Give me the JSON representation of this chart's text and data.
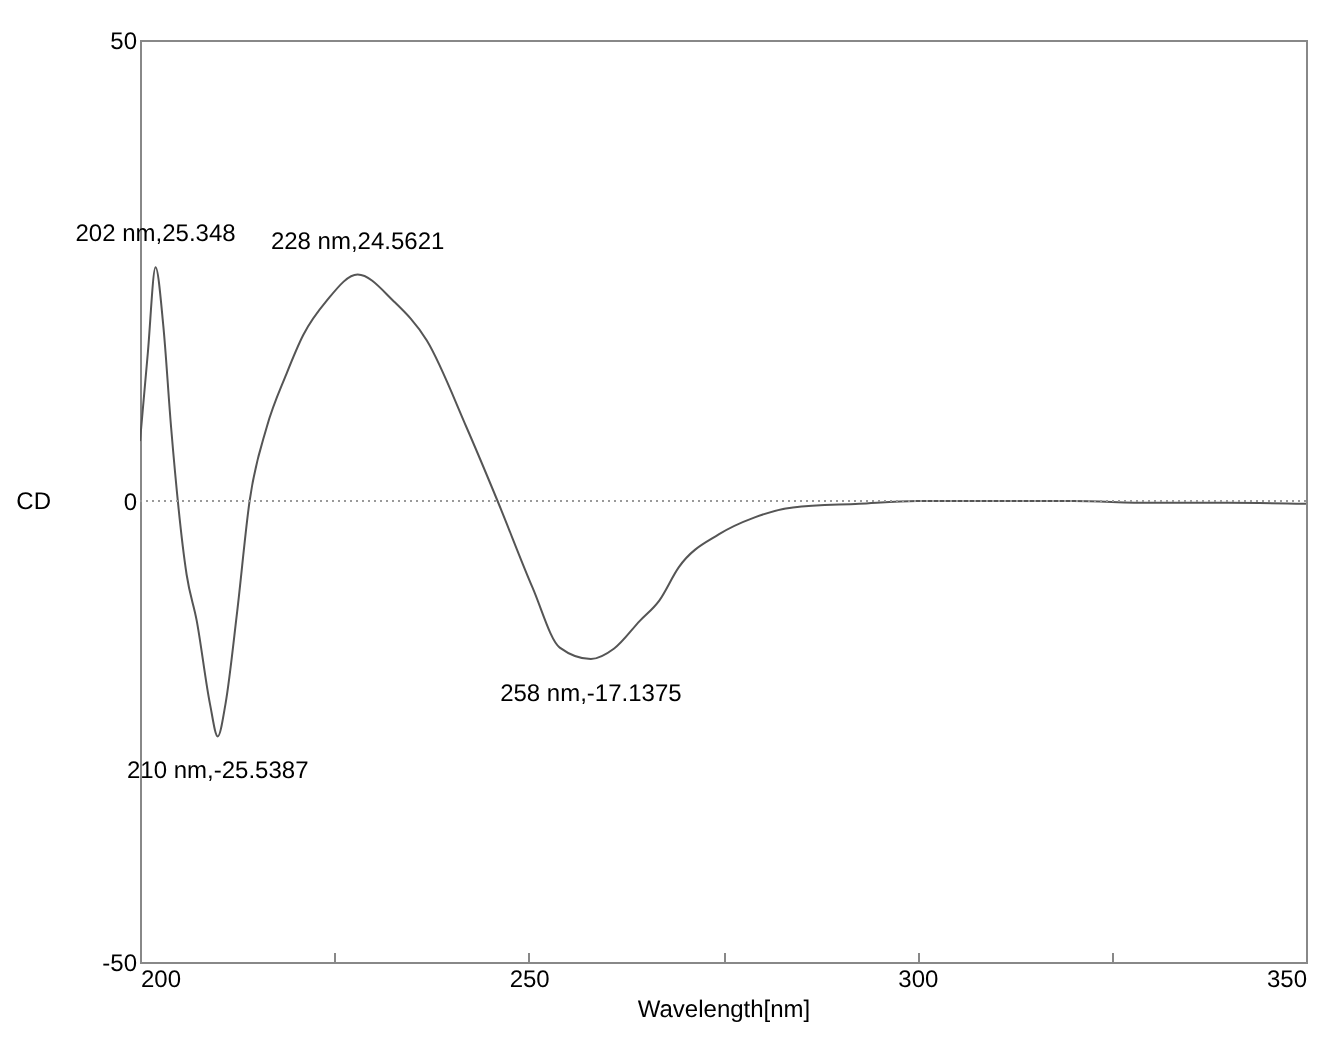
{
  "chart_data": {
    "type": "line",
    "xlabel": "Wavelength[nm]",
    "ylabel": "CD",
    "x": [
      200,
      201,
      202,
      203,
      204,
      206,
      207.3,
      209,
      210,
      211,
      212.5,
      214.1,
      216.3,
      218.8,
      221,
      224,
      228,
      232.6,
      236.9,
      242,
      246,
      250.5,
      254,
      258,
      261,
      264.3,
      266.8,
      269.3,
      274.5,
      279,
      284,
      292.5,
      300,
      310,
      320,
      330,
      340,
      350
    ],
    "series": [
      {
        "color": "#555555",
        "values": [
          6.5,
          16,
          25.348,
          19,
          8,
          -8,
          -13,
          -22,
          -25.5387,
          -22,
          -12,
          0,
          8,
          13.7,
          18,
          21.7,
          24.5621,
          21.7,
          17.4,
          8,
          0,
          -9.4,
          -15.9,
          -17.1375,
          -16,
          -13,
          -10.8,
          -7.2,
          -3.6,
          -1.8,
          -0.7,
          -0.3,
          0,
          0,
          0,
          -0.2,
          -0.2,
          -0.3
        ]
      }
    ],
    "xlim": [
      200,
      350
    ],
    "ylim": [
      -50,
      50
    ],
    "xticks": [
      200,
      {
        "value": 225,
        "label": null
      },
      250,
      {
        "value": 275,
        "label": null
      },
      300,
      {
        "value": 325,
        "label": null
      },
      350
    ],
    "yticks": [
      -50,
      0,
      50
    ],
    "ref_lines": [
      {
        "axis": "y",
        "value": 0,
        "color": "#999999",
        "line_style": "dotted"
      }
    ],
    "annotations": [
      {
        "text": "202 nm,25.348",
        "x": 202,
        "y": 25.348
      },
      {
        "text": "228 nm,24.5621",
        "x": 228,
        "y": 24.5621
      },
      {
        "text": "210 nm,-25.5387",
        "x": 210,
        "y": -25.5387
      },
      {
        "text": "258 nm,-17.1375",
        "x": 258,
        "y": -17.1375
      }
    ],
    "grid": false,
    "marker": "none",
    "line_style": "solid"
  }
}
